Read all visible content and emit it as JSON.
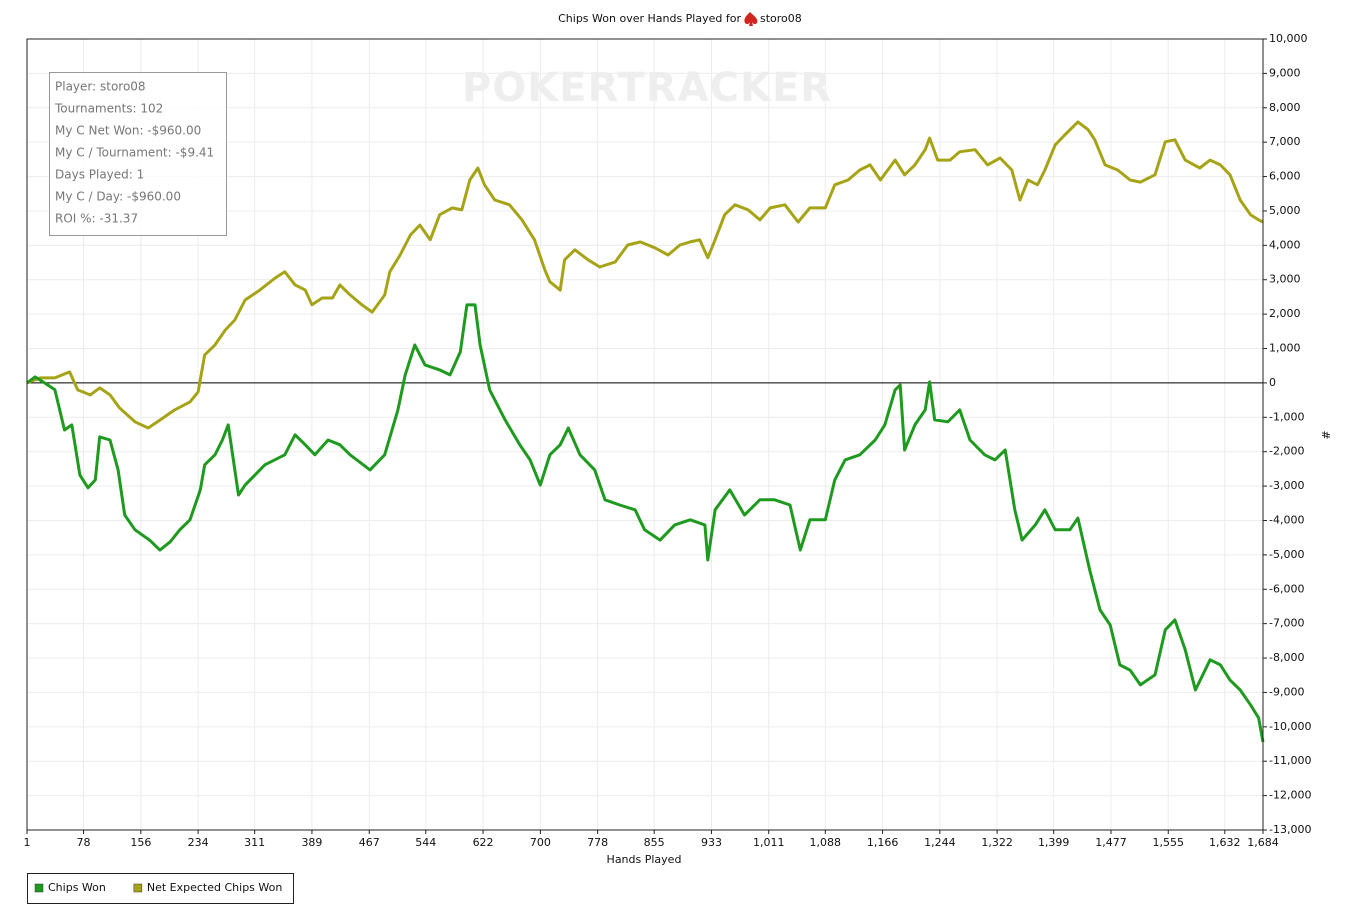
{
  "chart_data": {
    "type": "line",
    "title": "Chips Won over Hands Played for",
    "player": "storo08",
    "watermark": "POKERTRACKER",
    "info_box": [
      "Player: storo08",
      "Tournaments: 102",
      "My C Net Won: -$960.00",
      "My C / Tournament: -$9.41",
      "Days Played: 1",
      "My C / Day: -$960.00",
      "ROI %: -31.37"
    ],
    "xlabel": "Hands Played",
    "ylabel": "#",
    "xlim": [
      1,
      1684
    ],
    "ylim": [
      -13000,
      10000
    ],
    "xticks": [
      1,
      78,
      156,
      234,
      311,
      389,
      467,
      544,
      622,
      700,
      778,
      855,
      933,
      {
        "value": 1011,
        "label": "1,011"
      },
      {
        "value": 1088,
        "label": "1,088"
      },
      {
        "value": 1166,
        "label": "1,166"
      },
      {
        "value": 1244,
        "label": "1,244"
      },
      {
        "value": 1322,
        "label": "1,322"
      },
      {
        "value": 1399,
        "label": "1,399"
      },
      {
        "value": 1477,
        "label": "1,477"
      },
      {
        "value": 1555,
        "label": "1,555"
      },
      {
        "value": 1632,
        "label": "1,632"
      },
      {
        "value": 1684,
        "label": "1,684"
      }
    ],
    "yticks": [
      {
        "value": -13000,
        "label": "-13,000"
      },
      {
        "value": -12000,
        "label": "-12,000"
      },
      {
        "value": -11000,
        "label": "-11,000"
      },
      {
        "value": -10000,
        "label": "-10,000"
      },
      {
        "value": -9000,
        "label": "-9,000"
      },
      {
        "value": -8000,
        "label": "-8,000"
      },
      {
        "value": -7000,
        "label": "-7,000"
      },
      {
        "value": -6000,
        "label": "-6,000"
      },
      {
        "value": -5000,
        "label": "-5,000"
      },
      {
        "value": -4000,
        "label": "-4,000"
      },
      {
        "value": -3000,
        "label": "-3,000"
      },
      {
        "value": -2000,
        "label": "-2,000"
      },
      {
        "value": -1000,
        "label": "-1,000"
      },
      0,
      {
        "value": 1000,
        "label": "1,000"
      },
      {
        "value": 2000,
        "label": "2,000"
      },
      {
        "value": 3000,
        "label": "3,000"
      },
      {
        "value": 4000,
        "label": "4,000"
      },
      {
        "value": 5000,
        "label": "5,000"
      },
      {
        "value": 6000,
        "label": "6,000"
      },
      {
        "value": 7000,
        "label": "7,000"
      },
      {
        "value": 8000,
        "label": "8,000"
      },
      {
        "value": 9000,
        "label": "9,000"
      },
      {
        "value": 10000,
        "label": "10,000"
      }
    ],
    "grid": true,
    "hline": 0,
    "legend": "bottom-left",
    "series": [
      {
        "name": "Chips Won",
        "color": "#1e9a1e",
        "x": [
          1,
          12,
          25,
          39,
          52,
          62,
          73,
          84,
          94,
          100,
          114,
          125,
          134,
          148,
          168,
          182,
          196,
          209,
          223,
          237,
          243,
          257,
          267,
          275,
          280,
          289,
          298,
          325,
          352,
          366,
          380,
          393,
          411,
          427,
          441,
          468,
          488,
          506,
          516,
          529,
          543,
          563,
          577,
          591,
          600,
          611,
          618,
          631,
          652,
          672,
          686,
          700,
          713,
          727,
          738,
          754,
          774,
          788,
          808,
          829,
          842,
          863,
          883,
          904,
          924,
          928,
          938,
          958,
          978,
          999,
          1019,
          1040,
          1054,
          1067,
          1088,
          1101,
          1115,
          1135,
          1156,
          1169,
          1183,
          1190,
          1196,
          1210,
          1224,
          1230,
          1237,
          1255,
          1271,
          1285,
          1305,
          1319,
          1333,
          1346,
          1356,
          1374,
          1387,
          1401,
          1421,
          1432,
          1448,
          1462,
          1476,
          1489,
          1503,
          1517,
          1537,
          1551,
          1564,
          1578,
          1592,
          1612,
          1626,
          1639,
          1653,
          1667,
          1678,
          1684
        ],
        "values": [
          0,
          174,
          0,
          -200,
          -1370,
          -1220,
          -2680,
          -3050,
          -2820,
          -1570,
          -1660,
          -2530,
          -3840,
          -4270,
          -4570,
          -4860,
          -4620,
          -4270,
          -3980,
          -3110,
          -2380,
          -2090,
          -1660,
          -1220,
          -1950,
          -3260,
          -2970,
          -2380,
          -2090,
          -1510,
          -1800,
          -2090,
          -1660,
          -1800,
          -2090,
          -2530,
          -2090,
          -785,
          233,
          1105,
          523,
          378,
          233,
          901,
          2268,
          2268,
          1105,
          -204,
          -1076,
          -1800,
          -2240,
          -2970,
          -2090,
          -1800,
          -1310,
          -2090,
          -2530,
          -3400,
          -3550,
          -3690,
          -4270,
          -4570,
          -4130,
          -3980,
          -4130,
          -5150,
          -3690,
          -3110,
          -3840,
          -3400,
          -3400,
          -3550,
          -4860,
          -3980,
          -3980,
          -2820,
          -2240,
          -2090,
          -1660,
          -1220,
          -204,
          -58,
          -1950,
          -1220,
          -785,
          29,
          -1076,
          -1130,
          -785,
          -1660,
          -2090,
          -2240,
          -1950,
          -3690,
          -4570,
          -4130,
          -3690,
          -4270,
          -4270,
          -3930,
          -5440,
          -6600,
          -7040,
          -8200,
          -8350,
          -8780,
          -8490,
          -7180,
          -6890,
          -7760,
          -8930,
          -8050,
          -8200,
          -8640,
          -8930,
          -9360,
          -9740,
          -10440
        ]
      },
      {
        "name": "Net Expected Chips Won",
        "color": "#a6a416",
        "x": [
          1,
          19,
          39,
          59,
          70,
          87,
          100,
          114,
          127,
          148,
          166,
          182,
          202,
          223,
          234,
          243,
          257,
          271,
          284,
          298,
          318,
          339,
          352,
          366,
          380,
          389,
          403,
          417,
          427,
          441,
          457,
          471,
          488,
          495,
          509,
          523,
          536,
          550,
          563,
          580,
          593,
          604,
          615,
          624,
          638,
          658,
          675,
          692,
          706,
          713,
          727,
          733,
          747,
          765,
          781,
          802,
          819,
          836,
          856,
          874,
          890,
          904,
          917,
          928,
          938,
          951,
          965,
          983,
          999,
          1013,
          1033,
          1051,
          1067,
          1088,
          1101,
          1119,
          1135,
          1149,
          1163,
          1183,
          1196,
          1210,
          1224,
          1230,
          1241,
          1258,
          1271,
          1292,
          1309,
          1326,
          1342,
          1353,
          1364,
          1377,
          1387,
          1401,
          1414,
          1432,
          1446,
          1455,
          1469,
          1486,
          1503,
          1517,
          1537,
          1551,
          1564,
          1578,
          1598,
          1612,
          1626,
          1639,
          1653,
          1667,
          1678,
          1684
        ],
        "values": [
          0,
          145,
          145,
          320,
          -204,
          -349,
          -145,
          -349,
          -727,
          -1130,
          -1310,
          -1080,
          -785,
          -552,
          -262,
          814,
          1105,
          1540,
          1830,
          2410,
          2700,
          3050,
          3230,
          2850,
          2700,
          2270,
          2470,
          2470,
          2850,
          2560,
          2270,
          2060,
          2560,
          3230,
          3720,
          4300,
          4590,
          4160,
          4890,
          5090,
          5030,
          5900,
          6250,
          5760,
          5320,
          5180,
          4740,
          4160,
          3290,
          2940,
          2700,
          3580,
          3870,
          3580,
          3370,
          3520,
          4010,
          4100,
          3930,
          3720,
          4010,
          4100,
          4160,
          3640,
          4160,
          4890,
          5180,
          5030,
          4740,
          5090,
          5180,
          4680,
          5090,
          5090,
          5760,
          5900,
          6190,
          6340,
          5900,
          6480,
          6050,
          6340,
          6780,
          7120,
          6480,
          6480,
          6720,
          6780,
          6340,
          6540,
          6190,
          5320,
          5900,
          5760,
          6190,
          6920,
          7210,
          7590,
          7360,
          7070,
          6340,
          6190,
          5900,
          5840,
          6050,
          7010,
          7070,
          6480,
          6250,
          6480,
          6340,
          6050,
          5320,
          4890,
          4740,
          4680
        ]
      }
    ]
  }
}
